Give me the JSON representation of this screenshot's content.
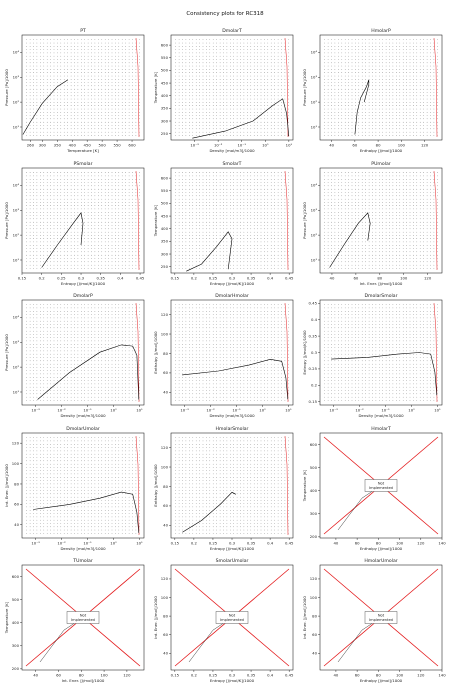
{
  "figure": {
    "title": "Consistency plots for RC318"
  },
  "chart_data": [
    {
      "type": "scatter",
      "title": "PT",
      "xlabel": "Temperature [K]",
      "ylabel": "Pressure [Pa]/1000",
      "xscale": "linear",
      "yscale": "log",
      "xlim": [
        232,
        640
      ],
      "ylim": [
        3,
        50000
      ],
      "xticks": [
        260,
        300,
        350,
        400,
        450,
        500,
        550,
        600
      ],
      "yticks": [
        10,
        100,
        1000,
        10000
      ],
      "saturation": {
        "x": [
          235,
          260,
          300,
          350,
          385
        ],
        "y": [
          5,
          16,
          90,
          420,
          780
        ]
      },
      "grid": true,
      "not_implemented": false
    },
    {
      "type": "scatter",
      "title": "DmolarT",
      "xlabel": "Density [mol/m3]/1000",
      "ylabel": "Temperature [K]",
      "xscale": "log",
      "yscale": "linear",
      "xlim": [
        0.0001,
        15
      ],
      "ylim": [
        225,
        640
      ],
      "xticks": [
        0.001,
        0.01,
        0.1,
        1,
        10
      ],
      "yticks": [
        250,
        300,
        350,
        400,
        450,
        500,
        550,
        600
      ],
      "saturation": {
        "x": [
          0.0008,
          0.02,
          0.3,
          2,
          5.5,
          8,
          10
        ],
        "y": [
          232,
          260,
          300,
          360,
          388,
          330,
          240
        ]
      },
      "grid": true,
      "not_implemented": false
    },
    {
      "type": "scatter",
      "title": "HmolarP",
      "xlabel": "Enthalpy [J/mol]/1000",
      "ylabel": "Pressure [Pa]/1000",
      "xscale": "linear",
      "yscale": "log",
      "xlim": [
        30,
        135
      ],
      "ylim": [
        3,
        50000
      ],
      "xticks": [
        40,
        60,
        80,
        100,
        120
      ],
      "yticks": [
        10,
        100,
        1000,
        10000
      ],
      "saturation": {
        "x": [
          60,
          62,
          65,
          70,
          72,
          72,
          68
        ],
        "y": [
          5,
          40,
          150,
          420,
          780,
          500,
          100
        ]
      },
      "grid": true,
      "not_implemented": false
    },
    {
      "type": "scatter",
      "title": "PSmolar",
      "xlabel": "Entropy [J/mol/K]/1000",
      "ylabel": "Pressure [Pa]/1000",
      "xscale": "linear",
      "yscale": "log",
      "xlim": [
        0.15,
        0.46
      ],
      "ylim": [
        3,
        50000
      ],
      "xticks": [
        0.15,
        0.2,
        0.25,
        0.3,
        0.35,
        0.4,
        0.45
      ],
      "yticks": [
        10,
        100,
        1000,
        10000
      ],
      "saturation": {
        "x": [
          0.2,
          0.24,
          0.28,
          0.3,
          0.305,
          0.3
        ],
        "y": [
          5,
          40,
          300,
          780,
          300,
          40
        ]
      },
      "grid": true,
      "not_implemented": false
    },
    {
      "type": "scatter",
      "title": "SmolarT",
      "xlabel": "Entropy [J/mol/K]/1000",
      "ylabel": "Temperature [K]",
      "xscale": "linear",
      "yscale": "linear",
      "xlim": [
        0.14,
        0.46
      ],
      "ylim": [
        225,
        640
      ],
      "xticks": [
        0.15,
        0.2,
        0.25,
        0.3,
        0.35,
        0.4,
        0.45
      ],
      "yticks": [
        250,
        300,
        350,
        400,
        450,
        500,
        550,
        600
      ],
      "saturation": {
        "x": [
          0.18,
          0.22,
          0.26,
          0.29,
          0.3,
          0.295,
          0.29
        ],
        "y": [
          232,
          260,
          330,
          388,
          360,
          300,
          240
        ]
      },
      "grid": true,
      "not_implemented": false
    },
    {
      "type": "scatter",
      "title": "PUmolar",
      "xlabel": "Int. Ener. [J/mol]/1000",
      "ylabel": "Pressure [Pa]/1000",
      "xscale": "linear",
      "yscale": "log",
      "xlim": [
        30,
        132
      ],
      "ylim": [
        3,
        50000
      ],
      "xticks": [
        40,
        60,
        80,
        100,
        120
      ],
      "yticks": [
        10,
        100,
        1000,
        10000
      ],
      "saturation": {
        "x": [
          38,
          50,
          62,
          70,
          72,
          70
        ],
        "y": [
          5,
          40,
          300,
          780,
          300,
          60
        ]
      },
      "grid": true,
      "not_implemented": false
    },
    {
      "type": "scatter",
      "title": "DmolarP",
      "xlabel": "Density [mol/m3]/1000",
      "ylabel": "Pressure [Pa]/1000",
      "xscale": "log",
      "yscale": "log",
      "xlim": [
        0.0003,
        15
      ],
      "ylim": [
        3,
        50000
      ],
      "xticks": [
        0.001,
        0.01,
        0.1,
        1,
        10
      ],
      "yticks": [
        10,
        100,
        1000,
        10000
      ],
      "saturation": {
        "x": [
          0.0012,
          0.02,
          0.3,
          2,
          5.5,
          8,
          9.5
        ],
        "y": [
          5,
          60,
          400,
          780,
          700,
          300,
          5
        ]
      },
      "grid": true,
      "not_implemented": false
    },
    {
      "type": "scatter",
      "title": "DmolarHmolar",
      "xlabel": "Density [mol/m3]/1000",
      "ylabel": "Enthalpy [J/mol]/1000",
      "xscale": "log",
      "yscale": "linear",
      "xlim": [
        0.0003,
        15
      ],
      "ylim": [
        27,
        135
      ],
      "xticks": [
        0.001,
        0.01,
        0.1,
        1,
        10
      ],
      "yticks": [
        40,
        60,
        80,
        100,
        120
      ],
      "saturation": {
        "x": [
          0.0008,
          0.02,
          0.3,
          2,
          5.5,
          8,
          9.5
        ],
        "y": [
          58,
          62,
          68,
          74,
          72,
          55,
          33
        ]
      },
      "grid": true,
      "not_implemented": false
    },
    {
      "type": "scatter",
      "title": "DmolarSmolar",
      "xlabel": "Density [mol/m3]/1000",
      "ylabel": "Entropy [J/mol/K]/1000",
      "xscale": "log",
      "yscale": "linear",
      "xlim": [
        0.0003,
        15
      ],
      "ylim": [
        0.14,
        0.46
      ],
      "xticks": [
        0.001,
        0.01,
        0.1,
        1,
        10
      ],
      "yticks": [
        0.15,
        0.2,
        0.25,
        0.3,
        0.35,
        0.4,
        0.45
      ],
      "saturation": {
        "x": [
          0.0008,
          0.02,
          0.3,
          2,
          5.5,
          8,
          9.5
        ],
        "y": [
          0.28,
          0.285,
          0.295,
          0.3,
          0.295,
          0.24,
          0.17
        ]
      },
      "grid": true,
      "not_implemented": false
    },
    {
      "type": "scatter",
      "title": "DmolarUmolar",
      "xlabel": "Density [mol/m3]/1000",
      "ylabel": "Int. Ener. [J/mol]/1000",
      "xscale": "log",
      "yscale": "linear",
      "xlim": [
        0.0003,
        15
      ],
      "ylim": [
        27,
        130
      ],
      "xticks": [
        0.001,
        0.01,
        0.1,
        1,
        10
      ],
      "yticks": [
        40,
        60,
        80,
        100,
        120
      ],
      "saturation": {
        "x": [
          0.0008,
          0.02,
          0.3,
          2,
          5.5,
          8,
          9.5
        ],
        "y": [
          55,
          60,
          66,
          72,
          70,
          52,
          32
        ]
      },
      "grid": true,
      "not_implemented": false
    },
    {
      "type": "scatter",
      "title": "HmolarSmolar",
      "xlabel": "Entropy [J/mol/K]/1000",
      "ylabel": "Enthalpy [J/mol]/1000",
      "xscale": "linear",
      "yscale": "linear",
      "xlim": [
        0.14,
        0.46
      ],
      "ylim": [
        27,
        135
      ],
      "xticks": [
        0.15,
        0.2,
        0.25,
        0.3,
        0.35,
        0.4,
        0.45
      ],
      "yticks": [
        40,
        60,
        80,
        100,
        120
      ],
      "saturation": {
        "x": [
          0.17,
          0.22,
          0.27,
          0.3,
          0.31
        ],
        "y": [
          33,
          45,
          62,
          74,
          72
        ]
      },
      "grid": true,
      "not_implemented": false
    },
    {
      "type": "line",
      "title": "HmolarT",
      "xlabel": "Enthalpy [J/mol]/1000",
      "ylabel": "Temperature [K]",
      "xscale": "linear",
      "yscale": "linear",
      "xlim": [
        25,
        140
      ],
      "ylim": [
        195,
        650
      ],
      "xticks": [
        40,
        60,
        80,
        100,
        120,
        140
      ],
      "yticks": [
        200,
        300,
        400,
        500,
        600
      ],
      "not_implemented": true,
      "not_implemented_label": "Not Implemented",
      "grid": true
    },
    {
      "type": "line",
      "title": "TUmolar",
      "xlabel": "Int. Ener. [J/mol]/1000",
      "ylabel": "Temperature [K]",
      "xscale": "linear",
      "yscale": "linear",
      "xlim": [
        28,
        135
      ],
      "ylim": [
        195,
        650
      ],
      "xticks": [
        40,
        60,
        80,
        100,
        120
      ],
      "yticks": [
        200,
        300,
        400,
        500,
        600
      ],
      "not_implemented": true,
      "not_implemented_label": "Not Implemented",
      "grid": true
    },
    {
      "type": "line",
      "title": "SmolarUmolar",
      "xlabel": "Entropy [J/mol/K]/1000",
      "ylabel": "Int. Ener. [J/mol]/1000",
      "xscale": "linear",
      "yscale": "linear",
      "xlim": [
        0.14,
        0.46
      ],
      "ylim": [
        22,
        135
      ],
      "xticks": [
        0.15,
        0.2,
        0.25,
        0.3,
        0.35,
        0.4,
        0.45
      ],
      "yticks": [
        40,
        60,
        80,
        100,
        120
      ],
      "not_implemented": true,
      "not_implemented_label": "Not Implemented",
      "grid": true
    },
    {
      "type": "line",
      "title": "HmolarUmolar",
      "xlabel": "Enthalpy [J/mol]/1000",
      "ylabel": "Int. Ener. [J/mol]/1000",
      "xscale": "linear",
      "yscale": "linear",
      "xlim": [
        25,
        140
      ],
      "ylim": [
        22,
        135
      ],
      "xticks": [
        40,
        60,
        80,
        100,
        120,
        140
      ],
      "yticks": [
        40,
        60,
        80,
        100,
        120
      ],
      "not_implemented": true,
      "not_implemented_label": "Not Implemented",
      "grid": true
    }
  ],
  "style": {
    "grid_dot_color": "#222222",
    "saturation_color": "#000000",
    "highlight_color": "#e31a1c"
  }
}
